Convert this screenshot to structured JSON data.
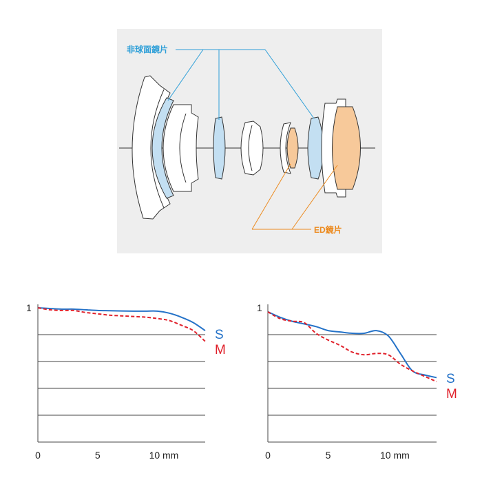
{
  "lens_diagram": {
    "aspherical_label": "非球面鏡片",
    "ed_label": "ED鏡片",
    "colors": {
      "panel_bg": "#eeeeee",
      "aspherical_fill": "#c3dff2",
      "ed_fill": "#f7c99a",
      "aspherical_line": "#2e9fd8",
      "ed_line": "#ec8a1e",
      "outline": "#333333"
    }
  },
  "chart_data": [
    {
      "type": "line",
      "title": "",
      "xlabel": "",
      "ylabel": "",
      "xlim": [
        0,
        14
      ],
      "ylim": [
        0,
        1
      ],
      "y_tick_label": "1",
      "x_tick_labels": [
        "0",
        "5",
        "10 mm"
      ],
      "x_ticks": [
        0,
        5,
        10
      ],
      "grid": "horizontal",
      "series": [
        {
          "name": "S",
          "color": "#2472c8",
          "dash": false,
          "x": [
            0,
            1,
            2,
            3,
            4,
            5,
            6,
            7,
            8,
            9,
            10,
            11,
            12,
            13,
            14
          ],
          "y": [
            1.0,
            0.995,
            0.99,
            0.99,
            0.985,
            0.98,
            0.978,
            0.976,
            0.975,
            0.975,
            0.975,
            0.96,
            0.93,
            0.89,
            0.83
          ]
        },
        {
          "name": "M",
          "color": "#e0202a",
          "dash": true,
          "x": [
            0,
            1,
            2,
            3,
            4,
            5,
            6,
            7,
            8,
            9,
            10,
            11,
            12,
            13,
            14
          ],
          "y": [
            1.0,
            0.985,
            0.98,
            0.98,
            0.965,
            0.955,
            0.945,
            0.94,
            0.935,
            0.93,
            0.92,
            0.905,
            0.87,
            0.83,
            0.75
          ]
        }
      ]
    },
    {
      "type": "line",
      "title": "",
      "xlabel": "",
      "ylabel": "",
      "xlim": [
        0,
        14
      ],
      "ylim": [
        0,
        1
      ],
      "y_tick_label": "1",
      "x_tick_labels": [
        "0",
        "5",
        "10 mm"
      ],
      "x_ticks": [
        0,
        5,
        10
      ],
      "grid": "horizontal",
      "series": [
        {
          "name": "S",
          "color": "#2472c8",
          "dash": false,
          "x": [
            0,
            1,
            2,
            3,
            4,
            5,
            6,
            7,
            8,
            9,
            10,
            11,
            12,
            13,
            14
          ],
          "y": [
            0.97,
            0.93,
            0.9,
            0.88,
            0.86,
            0.83,
            0.82,
            0.81,
            0.81,
            0.83,
            0.79,
            0.66,
            0.53,
            0.5,
            0.48
          ]
        },
        {
          "name": "M",
          "color": "#e0202a",
          "dash": true,
          "x": [
            0,
            1,
            2,
            3,
            4,
            5,
            6,
            7,
            8,
            9,
            10,
            11,
            12,
            13,
            14
          ],
          "y": [
            0.97,
            0.92,
            0.9,
            0.89,
            0.81,
            0.76,
            0.72,
            0.67,
            0.65,
            0.66,
            0.65,
            0.58,
            0.53,
            0.49,
            0.45
          ]
        }
      ]
    }
  ]
}
